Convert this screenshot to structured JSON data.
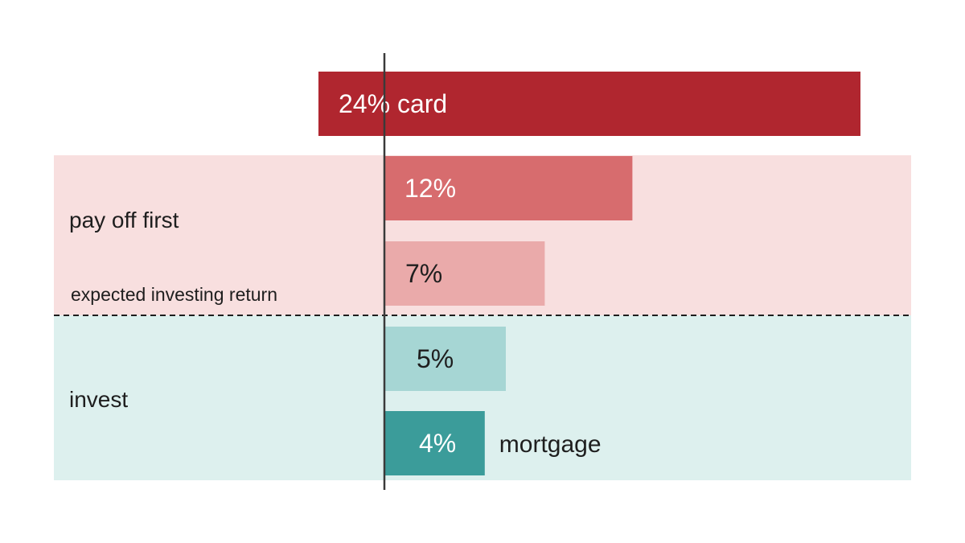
{
  "chart_data": {
    "type": "bar",
    "orientation": "horizontal",
    "categories": [
      "24% card",
      "12%",
      "7%",
      "5%",
      "4%"
    ],
    "values": [
      24,
      12,
      7,
      5,
      4
    ],
    "bar_labels": [
      "24% card",
      "12%",
      "7%",
      "5%",
      "4%"
    ],
    "outside_labels": [
      "",
      "",
      "",
      "",
      "mortgage"
    ],
    "bar_colors": [
      "#b0262f",
      "#d76c6e",
      "#eaaaaa",
      "#a6d6d4",
      "#3b9c9a"
    ],
    "label_colors": [
      "#ffffff",
      "#ffffff",
      "#1e1e1e",
      "#1e1e1e",
      "#ffffff"
    ],
    "threshold": {
      "value": 7,
      "label": "expected investing return",
      "style": "dashed"
    },
    "zones": [
      {
        "name": "pay off first",
        "color": "#f8dfdf"
      },
      {
        "name": "invest",
        "color": "#ddf0ee"
      }
    ],
    "title": "",
    "xlabel": "",
    "ylabel": "",
    "grid": false,
    "legend": "none"
  }
}
